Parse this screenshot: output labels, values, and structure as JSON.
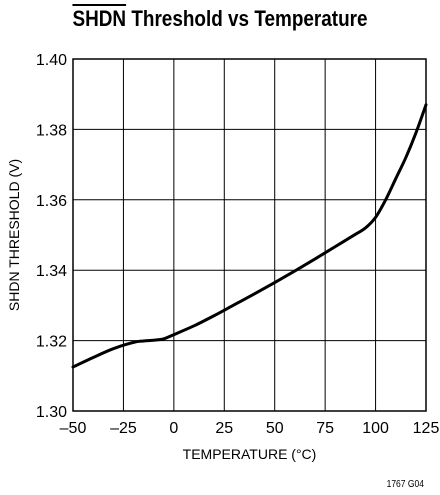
{
  "title": {
    "overbar_text": "SHDN",
    "rest_text": " Threshold vs Temperature"
  },
  "figure_code": "1767 G04",
  "chart_data": {
    "type": "line",
    "title": "SHDN Threshold vs Temperature",
    "xlabel": "TEMPERATURE (°C)",
    "ylabel": "SHDN THRESHOLD (V)",
    "xlim": [
      -50,
      125
    ],
    "ylim": [
      1.3,
      1.4
    ],
    "x_ticks": [
      -50,
      -25,
      0,
      25,
      50,
      75,
      100,
      125
    ],
    "x_tick_labels": [
      "–50",
      "–25",
      "0",
      "25",
      "50",
      "75",
      "100",
      "125"
    ],
    "y_ticks": [
      1.3,
      1.32,
      1.34,
      1.36,
      1.38,
      1.4
    ],
    "y_tick_labels": [
      "1.30",
      "1.32",
      "1.34",
      "1.36",
      "1.38",
      "1.40"
    ],
    "grid": true,
    "series": [
      {
        "x": [
          -50,
          -40,
          -30,
          -20,
          -15,
          -10,
          -5,
          0,
          10,
          20,
          30,
          40,
          50,
          60,
          70,
          80,
          90,
          95,
          100,
          105,
          110,
          115,
          120,
          125
        ],
        "y": [
          1.3125,
          1.3152,
          1.3177,
          1.3195,
          1.3199,
          1.3201,
          1.3205,
          1.3217,
          1.3242,
          1.3271,
          1.3302,
          1.3333,
          1.3365,
          1.3398,
          1.3432,
          1.3467,
          1.3502,
          1.352,
          1.355,
          1.36,
          1.366,
          1.372,
          1.379,
          1.387
        ]
      }
    ],
    "colors": {
      "line": "#000000",
      "grid": "#000000"
    }
  }
}
